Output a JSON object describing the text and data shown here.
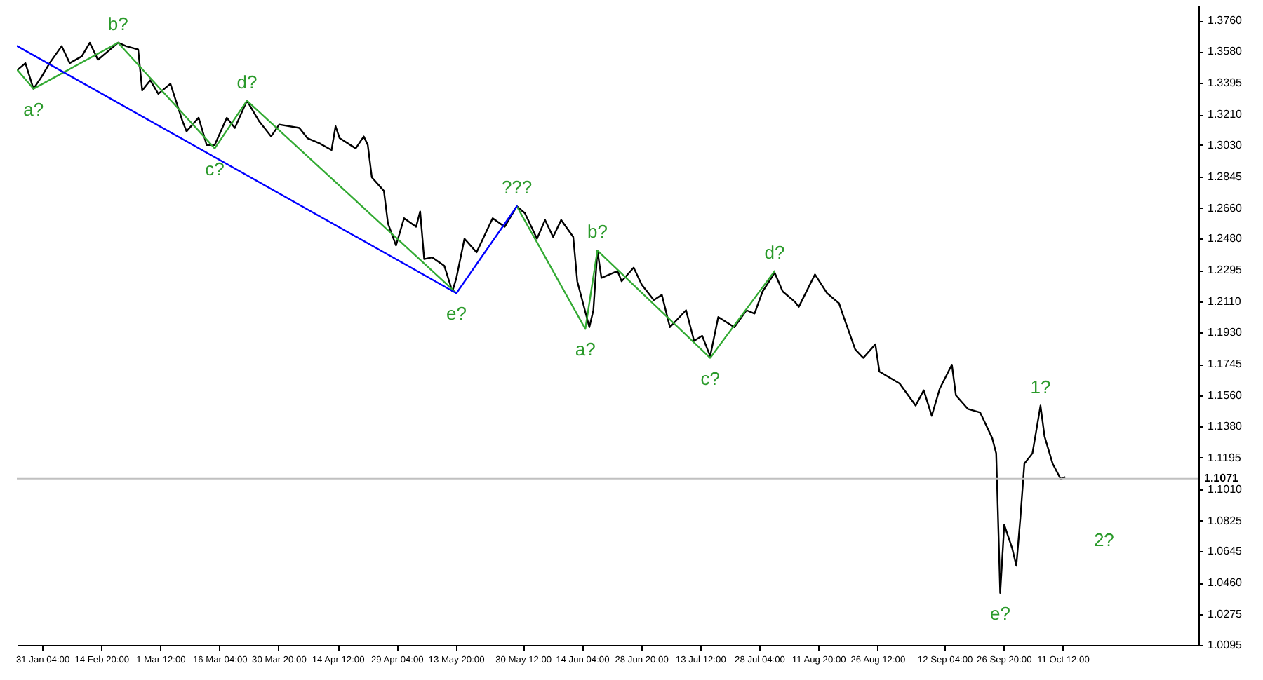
{
  "chart_data": {
    "type": "line",
    "xlim": [
      "--01-24T21:00",
      "--11-14T05:00"
    ],
    "ylim": [
      1.0095,
      1.3848
    ],
    "xticks": [
      {
        "value": "--01-31T04:00",
        "label": "31 Jan 04:00"
      },
      {
        "value": "--02-14T20:00",
        "label": "14 Feb 20:00"
      },
      {
        "value": "--03-01T12:00",
        "label": "1 Mar 12:00"
      },
      {
        "value": "--03-16T04:00",
        "label": "16 Mar 04:00"
      },
      {
        "value": "--03-30T20:00",
        "label": "30 Mar 20:00"
      },
      {
        "value": "--04-14T12:00",
        "label": "14 Apr 12:00"
      },
      {
        "value": "--04-29T04:00",
        "label": "29 Apr 04:00"
      },
      {
        "value": "--05-13T20:00",
        "label": "13 May 20:00"
      },
      {
        "value": "--05-30T12:00",
        "label": "30 May 12:00"
      },
      {
        "value": "--06-14T04:00",
        "label": "14 Jun 04:00"
      },
      {
        "value": "--06-28T20:00",
        "label": "28 Jun 20:00"
      },
      {
        "value": "--07-13T12:00",
        "label": "13 Jul 12:00"
      },
      {
        "value": "--07-28T04:00",
        "label": "28 Jul 04:00"
      },
      {
        "value": "--08-11T20:00",
        "label": "11 Aug 20:00"
      },
      {
        "value": "--08-26T12:00",
        "label": "26 Aug 12:00"
      },
      {
        "value": "--09-12T04:00",
        "label": "12 Sep 04:00"
      },
      {
        "value": "--09-26T20:00",
        "label": "26 Sep 20:00"
      },
      {
        "value": "--10-11T12:00",
        "label": "11 Oct 12:00"
      }
    ],
    "yticks": [
      {
        "value": 1.376,
        "label": "1.3760"
      },
      {
        "value": 1.358,
        "label": "1.3580"
      },
      {
        "value": 1.3395,
        "label": "1.3395"
      },
      {
        "value": 1.321,
        "label": "1.3210"
      },
      {
        "value": 1.303,
        "label": "1.3030"
      },
      {
        "value": 1.2845,
        "label": "1.2845"
      },
      {
        "value": 1.266,
        "label": "1.2660"
      },
      {
        "value": 1.248,
        "label": "1.2480"
      },
      {
        "value": 1.2295,
        "label": "1.2295"
      },
      {
        "value": 1.211,
        "label": "1.2110"
      },
      {
        "value": 1.193,
        "label": "1.1930"
      },
      {
        "value": 1.1745,
        "label": "1.1745"
      },
      {
        "value": 1.156,
        "label": "1.1560"
      },
      {
        "value": 1.138,
        "label": "1.1380"
      },
      {
        "value": 1.1195,
        "label": "1.1195"
      },
      {
        "value": 1.101,
        "label": "1.1010"
      },
      {
        "value": 1.0825,
        "label": "1.0825"
      },
      {
        "value": 1.0645,
        "label": "1.0645"
      },
      {
        "value": 1.046,
        "label": "1.0460"
      },
      {
        "value": 1.0275,
        "label": "1.0275"
      },
      {
        "value": 1.0095,
        "label": "1.0095"
      }
    ],
    "grid": false,
    "series": [
      {
        "color": "#000000",
        "x": [
          "--01-25",
          "--01-27",
          "--01-29",
          "--01-31",
          "--02-02",
          "--02-05",
          "--02-07",
          "--02-10",
          "--02-12",
          "--02-14",
          "--02-16",
          "--02-19",
          "--02-21",
          "--02-24",
          "--02-25",
          "--02-27",
          "--03-01",
          "--03-04",
          "--03-07",
          "--03-08",
          "--03-11",
          "--03-13",
          "--03-15",
          "--03-18",
          "--03-20",
          "--03-23",
          "--03-25",
          "--03-26",
          "--03-29",
          "--03-31",
          "--04-05",
          "--04-07",
          "--04-10",
          "--04-13",
          "--04-14",
          "--04-15",
          "--04-19",
          "--04-21",
          "--04-22",
          "--04-23",
          "--04-26",
          "--04-27",
          "--04-29",
          "--05-01",
          "--05-04",
          "--05-05",
          "--05-06",
          "--05-08",
          "--05-11",
          "--05-13",
          "--05-14",
          "--05-16",
          "--05-19",
          "--05-23",
          "--05-26",
          "--05-29",
          "--05-31",
          "--06-03",
          "--06-05",
          "--06-07",
          "--06-09",
          "--06-12",
          "--06-13",
          "--06-16",
          "--06-17",
          "--06-18",
          "--06-19",
          "--06-23",
          "--06-24",
          "--06-27",
          "--06-29",
          "--07-02",
          "--07-04",
          "--07-06",
          "--07-10",
          "--07-12",
          "--07-14",
          "--07-16",
          "--07-18",
          "--07-22",
          "--07-25",
          "--07-27",
          "--07-29",
          "--08-01",
          "--08-03",
          "--08-06",
          "--08-07",
          "--08-11",
          "--08-14",
          "--08-17",
          "--08-18",
          "--08-21",
          "--08-23",
          "--08-26",
          "--08-27",
          "--09-01",
          "--09-05",
          "--09-07",
          "--09-09",
          "--09-11",
          "--09-14",
          "--09-15",
          "--09-18",
          "--09-21",
          "--09-24",
          "--09-25",
          "--09-26",
          "--09-27",
          "--09-29",
          "--09-30",
          "--10-01",
          "--10-02",
          "--10-04",
          "--10-06",
          "--10-07",
          "--10-09",
          "--10-11",
          "--10-12"
        ],
        "values": [
          1.347,
          1.351,
          1.336,
          1.343,
          1.351,
          1.361,
          1.351,
          1.355,
          1.363,
          1.353,
          1.357,
          1.363,
          1.361,
          1.359,
          1.335,
          1.341,
          1.333,
          1.339,
          1.317,
          1.311,
          1.319,
          1.303,
          1.303,
          1.319,
          1.313,
          1.329,
          1.321,
          1.317,
          1.308,
          1.315,
          1.313,
          1.307,
          1.304,
          1.3,
          1.314,
          1.307,
          1.301,
          1.308,
          1.303,
          1.284,
          1.276,
          1.257,
          1.244,
          1.26,
          1.255,
          1.264,
          1.236,
          1.237,
          1.232,
          1.217,
          1.225,
          1.248,
          1.24,
          1.26,
          1.255,
          1.267,
          1.263,
          1.248,
          1.259,
          1.249,
          1.259,
          1.249,
          1.223,
          1.196,
          1.206,
          1.241,
          1.225,
          1.229,
          1.223,
          1.231,
          1.221,
          1.212,
          1.215,
          1.196,
          1.206,
          1.188,
          1.191,
          1.179,
          1.202,
          1.196,
          1.206,
          1.204,
          1.217,
          1.228,
          1.217,
          1.211,
          1.208,
          1.227,
          1.216,
          1.21,
          1.203,
          1.183,
          1.178,
          1.186,
          1.17,
          1.163,
          1.15,
          1.159,
          1.144,
          1.16,
          1.174,
          1.156,
          1.148,
          1.146,
          1.131,
          1.122,
          1.04,
          1.08,
          1.066,
          1.056,
          1.084,
          1.116,
          1.122,
          1.15,
          1.132,
          1.116,
          1.107,
          1.108
        ]
      },
      {
        "color": "#33aa33",
        "x": [
          "--01-25",
          "--01-29",
          "--02-19",
          "--03-15",
          "--03-23",
          "--05-14"
        ],
        "values": [
          1.347,
          1.336,
          1.363,
          1.301,
          1.329,
          1.216
        ]
      },
      {
        "color": "#33aa33",
        "x": [
          "--05-29",
          "--06-15",
          "--06-18",
          "--07-16",
          "--08-01"
        ],
        "values": [
          1.267,
          1.195,
          1.241,
          1.178,
          1.229
        ]
      },
      {
        "color": "#0000ff",
        "x": [
          "--01-25",
          "--05-14",
          "--05-29"
        ],
        "values": [
          1.361,
          1.216,
          1.267
        ]
      }
    ],
    "ref_lines": [
      {
        "axis": "y",
        "value": 1.1071,
        "label": "1.1071",
        "color": "#c0c0c0"
      }
    ],
    "annotations": [
      {
        "text": "a?",
        "x": "--01-29",
        "y": 1.336
      },
      {
        "text": "b?",
        "x": "--02-19",
        "y": 1.363
      },
      {
        "text": "c?",
        "x": "--03-15",
        "y": 1.301
      },
      {
        "text": "d?",
        "x": "--03-23",
        "y": 1.329
      },
      {
        "text": "e?",
        "x": "--05-14",
        "y": 1.216
      },
      {
        "text": "???",
        "x": "--05-29",
        "y": 1.267
      },
      {
        "text": "b?",
        "x": "--06-18",
        "y": 1.241
      },
      {
        "text": "a?",
        "x": "--06-15",
        "y": 1.195
      },
      {
        "text": "c?",
        "x": "--07-16",
        "y": 1.178
      },
      {
        "text": "d?",
        "x": "--08-01",
        "y": 1.229
      },
      {
        "text": "e?",
        "x": "--09-26",
        "y": 1.04
      },
      {
        "text": "1?",
        "x": "--10-06",
        "y": 1.15
      },
      "2?"
    ]
  }
}
